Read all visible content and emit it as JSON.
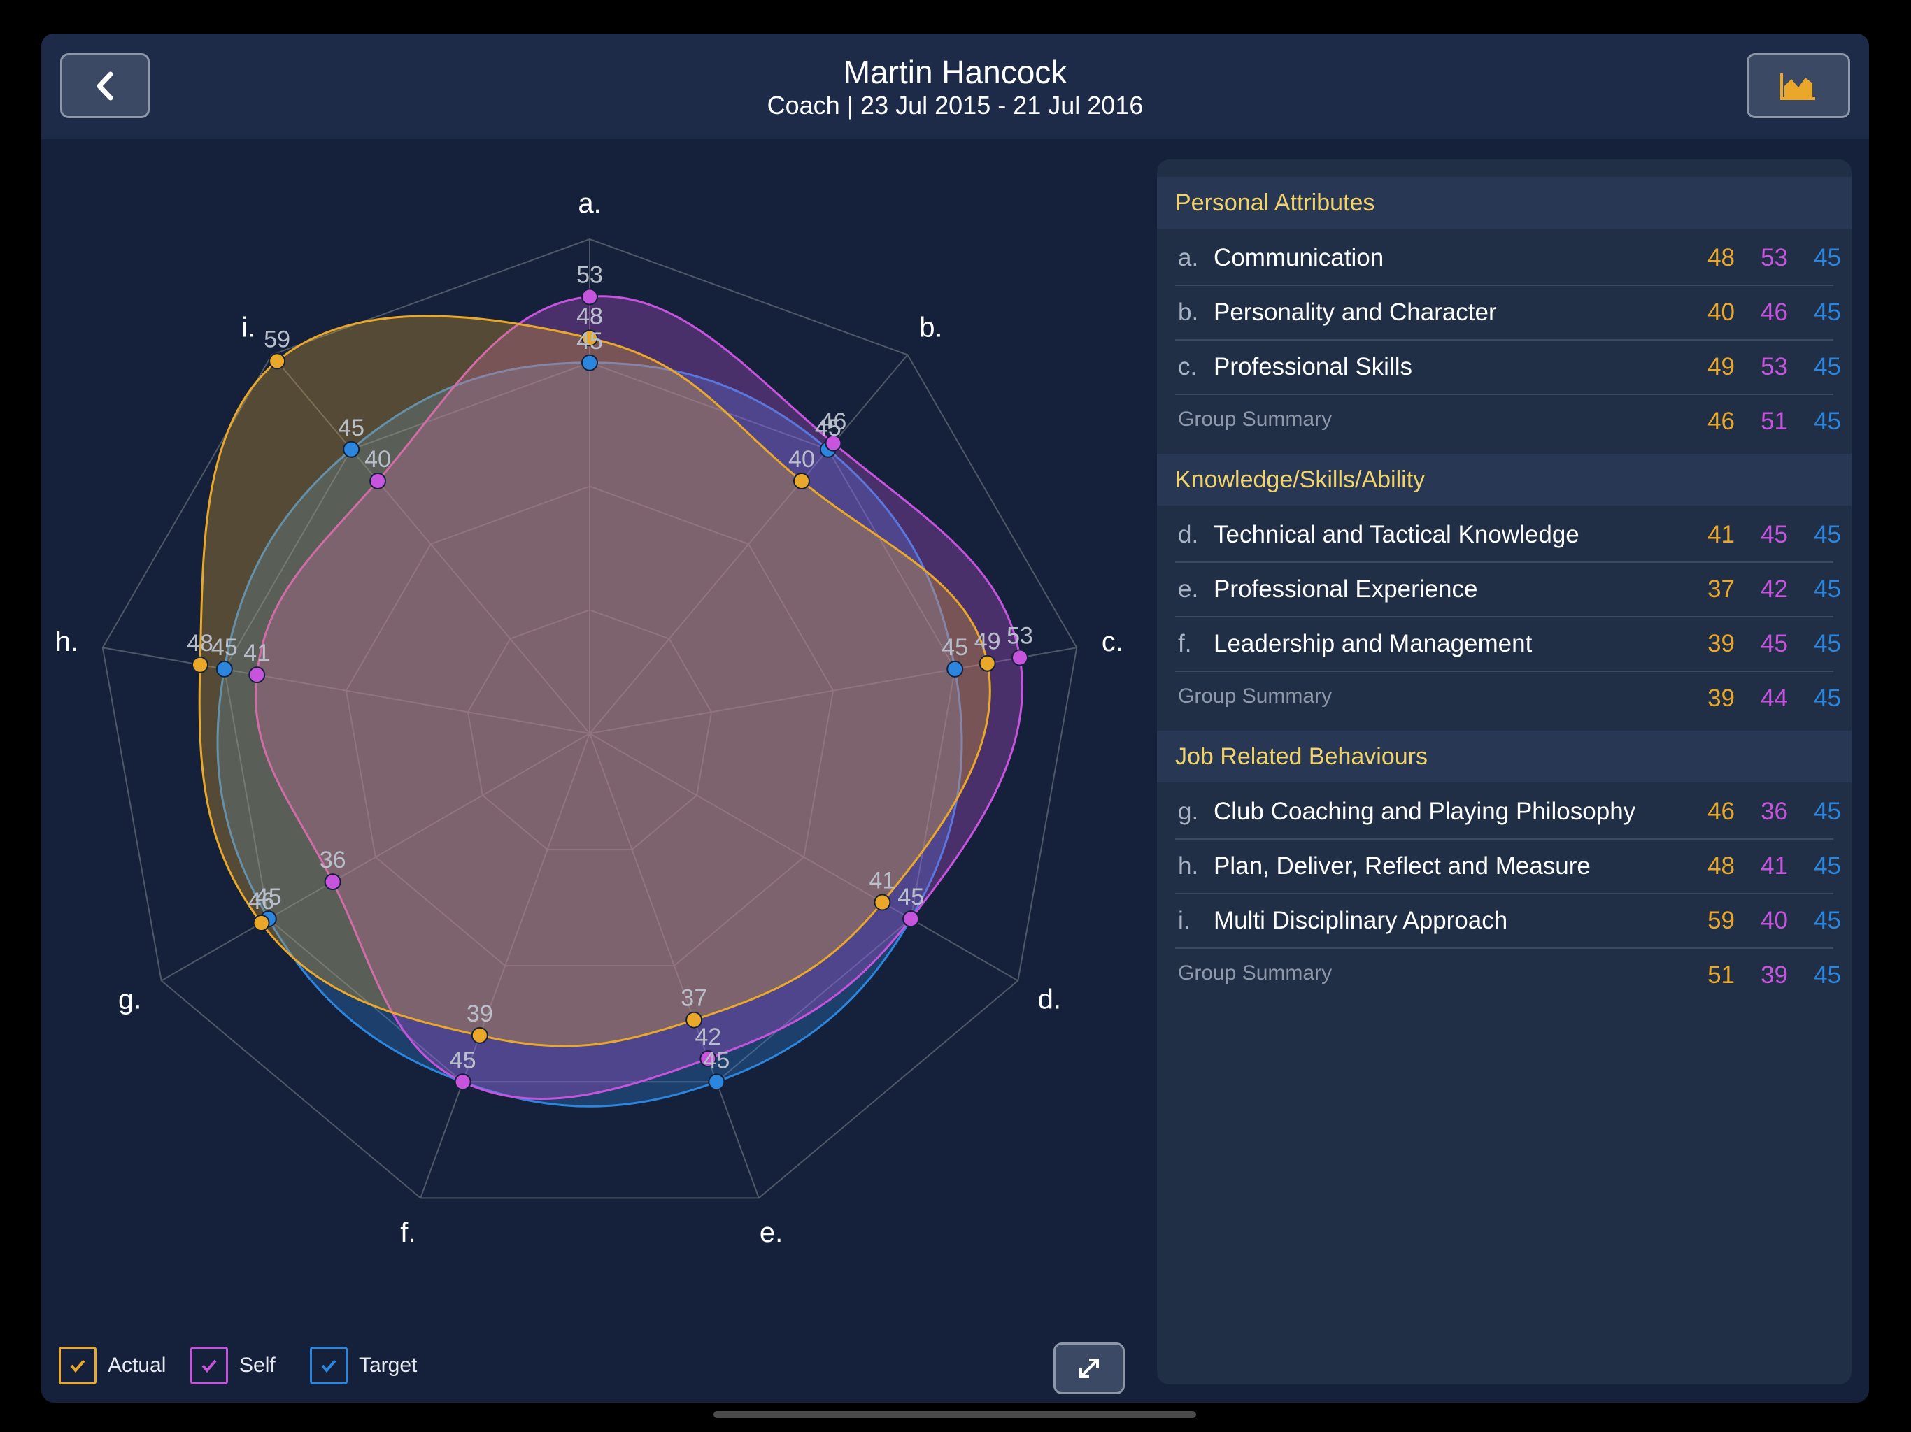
{
  "header": {
    "title": "Martin Hancock",
    "subtitle": "Coach | 23 Jul 2015 - 21 Jul 2016",
    "back_icon": "chevron-left-icon",
    "chart_icon": "area-chart-icon"
  },
  "colors": {
    "actual": "#e9a82a",
    "self": "#c654dc",
    "target": "#2d86de",
    "grid": "#4e5868"
  },
  "chart_data": {
    "type": "radar",
    "axes": [
      "a.",
      "b.",
      "c.",
      "d.",
      "e.",
      "f.",
      "g.",
      "h.",
      "i."
    ],
    "rmax": 60,
    "rings": 4,
    "series": [
      {
        "name": "Actual",
        "color": "#e9a82a",
        "values": [
          48,
          40,
          49,
          41,
          37,
          39,
          46,
          48,
          59
        ]
      },
      {
        "name": "Self",
        "color": "#c654dc",
        "values": [
          53,
          46,
          53,
          45,
          42,
          45,
          36,
          41,
          40
        ]
      },
      {
        "name": "Target",
        "color": "#2d86de",
        "values": [
          45,
          45,
          45,
          45,
          45,
          45,
          45,
          45,
          45
        ]
      }
    ],
    "legend": "bottom-left"
  },
  "panel": {
    "sections": [
      {
        "title": "Personal Attributes",
        "rows": [
          {
            "idx": "a.",
            "name": "Communication",
            "actual": "48",
            "self": "53",
            "target": "45"
          },
          {
            "idx": "b.",
            "name": "Personality and Character",
            "actual": "40",
            "self": "46",
            "target": "45"
          },
          {
            "idx": "c.",
            "name": "Professional Skills",
            "actual": "49",
            "self": "53",
            "target": "45"
          }
        ],
        "summary": {
          "label": "Group Summary",
          "actual": "46",
          "self": "51",
          "target": "45"
        }
      },
      {
        "title": "Knowledge/Skills/Ability",
        "rows": [
          {
            "idx": "d.",
            "name": "Technical and Tactical Knowledge",
            "actual": "41",
            "self": "45",
            "target": "45"
          },
          {
            "idx": "e.",
            "name": "Professional Experience",
            "actual": "37",
            "self": "42",
            "target": "45"
          },
          {
            "idx": "f.",
            "name": "Leadership and Management",
            "actual": "39",
            "self": "45",
            "target": "45"
          }
        ],
        "summary": {
          "label": "Group Summary",
          "actual": "39",
          "self": "44",
          "target": "45"
        }
      },
      {
        "title": "Job Related Behaviours",
        "rows": [
          {
            "idx": "g.",
            "name": "Club Coaching and Playing Philosophy",
            "actual": "46",
            "self": "36",
            "target": "45"
          },
          {
            "idx": "h.",
            "name": "Plan, Deliver, Reflect and Measure",
            "actual": "48",
            "self": "41",
            "target": "45"
          },
          {
            "idx": "i.",
            "name": "Multi Disciplinary Approach",
            "actual": "59",
            "self": "40",
            "target": "45"
          }
        ],
        "summary": {
          "label": "Group Summary",
          "actual": "51",
          "self": "39",
          "target": "45"
        }
      }
    ]
  },
  "legend": {
    "items": [
      {
        "label": "Actual",
        "checked": true
      },
      {
        "label": "Self",
        "checked": true
      },
      {
        "label": "Target",
        "checked": true
      }
    ]
  },
  "footer": {
    "expand_icon": "expand-icon"
  }
}
